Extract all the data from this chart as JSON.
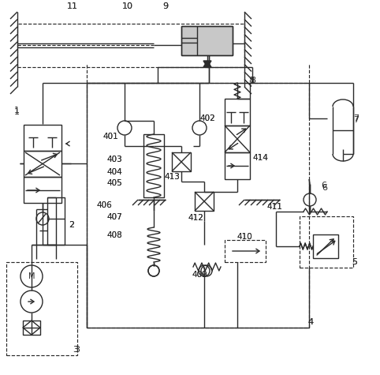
{
  "bg": "#ffffff",
  "lc": "#2a2a2a",
  "lw": 1.0,
  "dlw": 0.85,
  "fw": 4.82,
  "fh": 4.75,
  "dpi": 100
}
